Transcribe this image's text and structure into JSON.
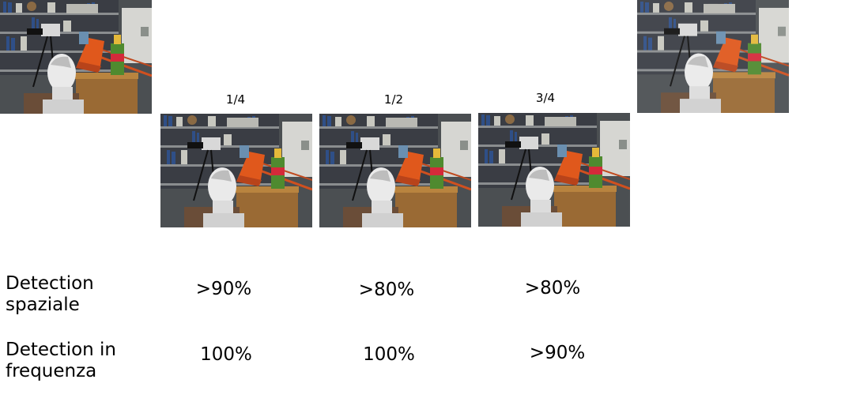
{
  "frames": [
    {
      "label": "1/4"
    },
    {
      "label": "1/2"
    },
    {
      "label": "3/4"
    }
  ],
  "rows": [
    {
      "label": "Detection spaziale",
      "values": [
        ">90%",
        ">80%",
        ">80%"
      ]
    },
    {
      "label": "Detection in frequenza",
      "values": [
        "100%",
        "100%",
        ">90%"
      ]
    }
  ]
}
